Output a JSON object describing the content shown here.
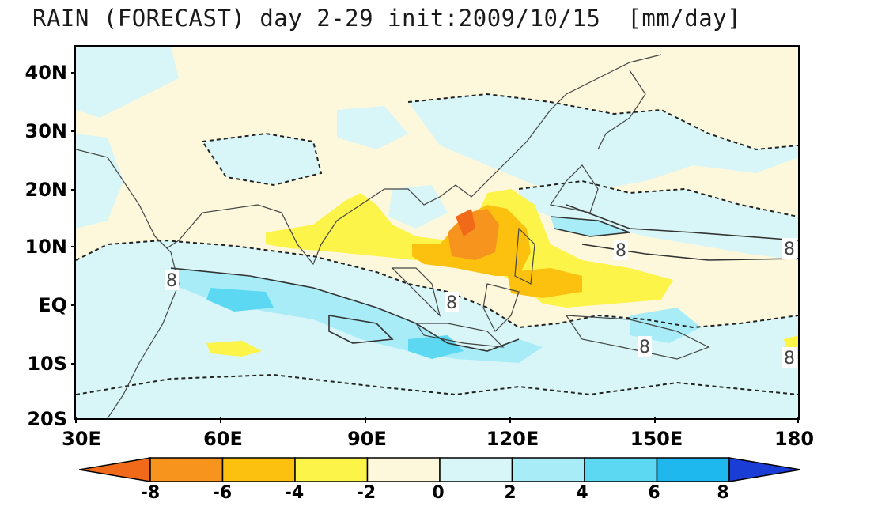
{
  "title": {
    "text": "RAIN (FORECAST) day 2-29 init:2009/10/15",
    "units": "[mm/day]"
  },
  "map": {
    "lat_labels": [
      "40N",
      "30N",
      "20N",
      "10N",
      "EQ",
      "10S",
      "20S"
    ],
    "lon_labels": [
      "30E",
      "60E",
      "90E",
      "120E",
      "150E",
      "180"
    ],
    "contour_labels": [
      "8",
      "8",
      "8",
      "8",
      "8",
      "8"
    ]
  },
  "colorbar": {
    "labels": [
      "-8",
      "-6",
      "-4",
      "-2",
      "0",
      "2",
      "4",
      "6",
      "8"
    ],
    "colors": [
      "#f06a1a",
      "#f7941d",
      "#fcc10f",
      "#fdf44a",
      "#fdf8dc",
      "#d8f6f8",
      "#a8ecf7",
      "#5cd8f2",
      "#1fb8ee",
      "#1a3dd6"
    ]
  }
}
